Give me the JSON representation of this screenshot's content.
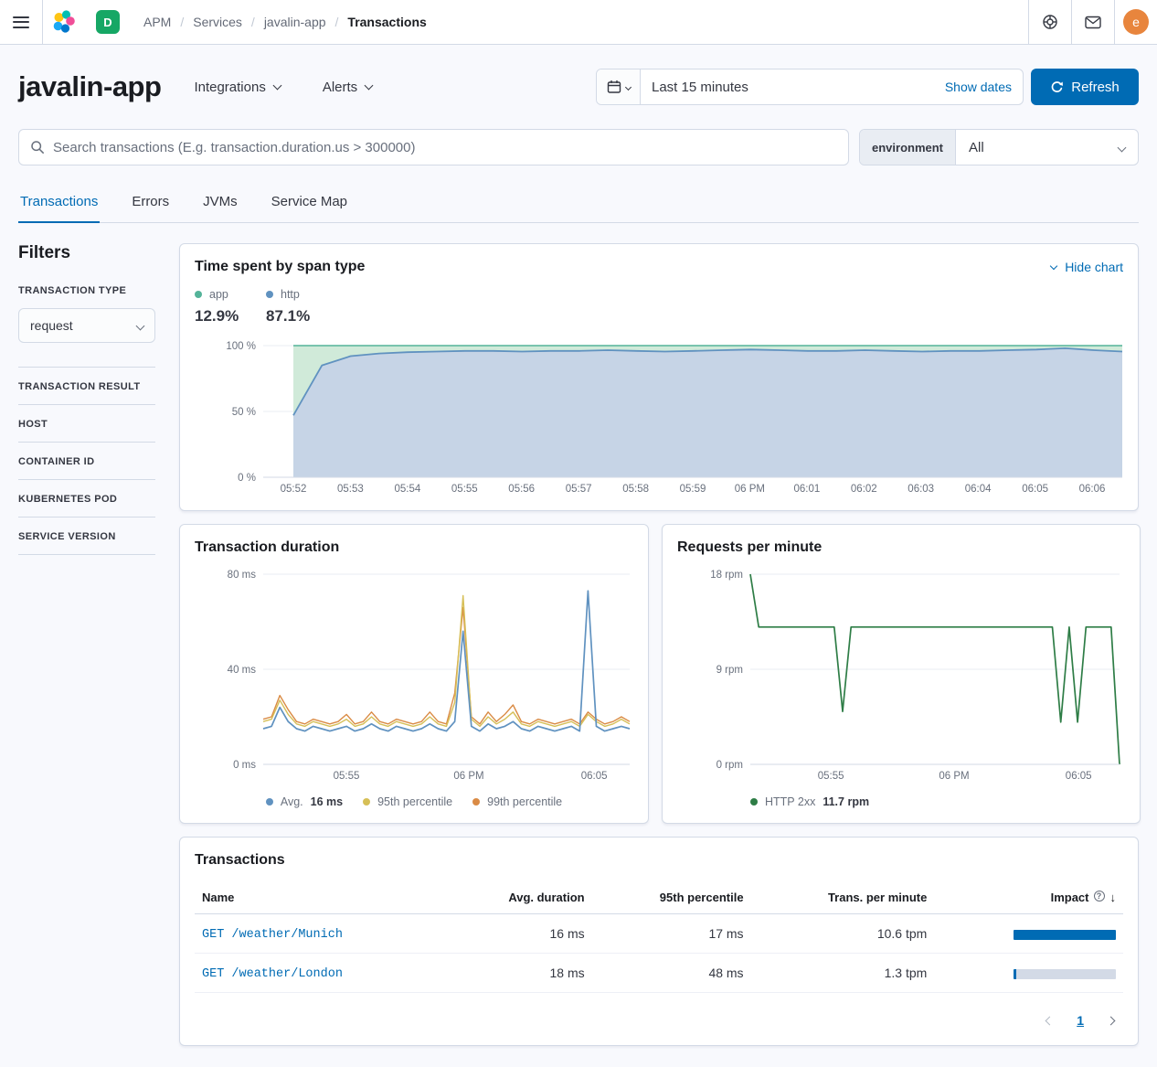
{
  "topbar": {
    "breadcrumbs": [
      "APM",
      "Services",
      "javalin-app",
      "Transactions"
    ],
    "space_badge": {
      "initial": "D",
      "color": "#16a765"
    },
    "avatar": {
      "initial": "e",
      "color": "#e8853d"
    }
  },
  "header": {
    "title": "javalin-app",
    "integrations_label": "Integrations",
    "alerts_label": "Alerts",
    "time_range": "Last 15 minutes",
    "show_dates_label": "Show dates",
    "refresh_label": "Refresh"
  },
  "search": {
    "placeholder": "Search transactions (E.g. transaction.duration.us > 300000)",
    "environment_label": "environment",
    "environment_value": "All"
  },
  "tabs": [
    {
      "label": "Transactions"
    },
    {
      "label": "Errors"
    },
    {
      "label": "JVMs"
    },
    {
      "label": "Service Map"
    }
  ],
  "filters": {
    "title": "Filters",
    "transaction_type_label": "TRANSACTION TYPE",
    "transaction_type_value": "request",
    "sections": [
      {
        "label": "TRANSACTION RESULT"
      },
      {
        "label": "HOST"
      },
      {
        "label": "CONTAINER ID"
      },
      {
        "label": "KUBERNETES POD"
      },
      {
        "label": "SERVICE VERSION"
      }
    ]
  },
  "span_panel": {
    "title": "Time spent by span type",
    "hide_chart_label": "Hide chart",
    "legend": [
      {
        "label": "app",
        "pct": "12.9%",
        "color": "#54B399"
      },
      {
        "label": "http",
        "pct": "87.1%",
        "color": "#6092C0"
      }
    ]
  },
  "duration_panel": {
    "title": "Transaction duration",
    "legend": [
      {
        "label": "Avg.",
        "value": "16 ms",
        "color": "#6092C0"
      },
      {
        "label": "95th percentile",
        "value": "",
        "color": "#D6BF57"
      },
      {
        "label": "99th percentile",
        "value": "",
        "color": "#DA8B45"
      }
    ]
  },
  "rpm_panel": {
    "title": "Requests per minute",
    "legend": [
      {
        "label": "HTTP 2xx",
        "value": "11.7 rpm",
        "color": "#2e7d46"
      }
    ]
  },
  "chart_data": [
    {
      "id": "time-spent-by-span-type",
      "type": "area",
      "stacked": true,
      "title": "Time spent by span type",
      "ylim": [
        0,
        100
      ],
      "y_ticks": [
        {
          "v": 0,
          "label": "0 %"
        },
        {
          "v": 50,
          "label": "50 %"
        },
        {
          "v": 100,
          "label": "100 %"
        }
      ],
      "x_tick_labels": [
        "05:52",
        "05:53",
        "05:54",
        "05:55",
        "05:56",
        "05:57",
        "05:58",
        "05:59",
        "06 PM",
        "06:01",
        "06:02",
        "06:03",
        "06:04",
        "06:05",
        "06:06"
      ],
      "series": [
        {
          "name": "http",
          "color": "#6092C0",
          "fill": "#c6d4e6",
          "values": [
            47,
            85,
            92,
            94,
            95,
            95.5,
            96,
            96,
            95.5,
            96,
            96,
            96.5,
            96,
            95.5,
            96,
            96.5,
            97,
            96.5,
            96,
            96,
            96.5,
            96,
            95.5,
            96,
            96,
            96.5,
            97,
            98,
            96.5,
            95.5
          ]
        },
        {
          "name": "app",
          "color": "#54B399",
          "fill": "#d0ead9",
          "values": [
            53,
            15,
            8,
            6,
            5,
            4.5,
            4,
            4,
            4.5,
            4,
            4,
            3.5,
            4,
            4.5,
            4,
            3.5,
            3,
            3.5,
            4,
            4,
            3.5,
            4,
            4.5,
            4,
            4,
            3.5,
            3,
            2,
            3.5,
            4.5
          ]
        }
      ],
      "legend_position": "top",
      "grid": true,
      "margins": {
        "l": 75,
        "r": 1,
        "t": 12,
        "b": 20
      },
      "first_tick_offset": 33,
      "last_tick_inset": 33
    },
    {
      "id": "transaction-duration",
      "type": "line",
      "title": "Transaction duration",
      "ylim": [
        0,
        80
      ],
      "y_ticks": [
        {
          "v": 0,
          "label": "0 ms"
        },
        {
          "v": 40,
          "label": "40 ms"
        },
        {
          "v": 80,
          "label": "80 ms"
        }
      ],
      "x_ticks": [
        {
          "f": 0.227,
          "label": "05:55"
        },
        {
          "f": 0.561,
          "label": "06 PM"
        },
        {
          "f": 0.903,
          "label": "06:05"
        }
      ],
      "series": [
        {
          "name": "99th percentile",
          "color": "#DA8B45",
          "width": 1.4,
          "values": [
            19,
            20,
            29,
            23,
            18,
            17,
            19,
            18,
            17,
            18,
            21,
            17,
            18,
            22,
            18,
            17,
            19,
            18,
            17,
            18,
            22,
            18,
            17,
            30,
            66,
            20,
            17,
            22,
            18,
            21,
            25,
            18,
            17,
            19,
            18,
            17,
            18,
            19,
            17,
            22,
            19,
            17,
            18,
            20,
            18
          ]
        },
        {
          "name": "95th percentile",
          "color": "#D6BF57",
          "width": 1.4,
          "values": [
            18,
            19,
            27,
            21,
            17,
            16,
            18,
            17,
            16,
            17,
            19,
            16,
            17,
            20,
            17,
            16,
            18,
            17,
            16,
            17,
            20,
            17,
            16,
            26,
            71,
            19,
            16,
            20,
            17,
            19,
            22,
            17,
            16,
            18,
            17,
            16,
            17,
            18,
            16,
            21,
            18,
            16,
            17,
            19,
            17
          ]
        },
        {
          "name": "Avg.",
          "color": "#6092C0",
          "width": 1.7,
          "values": [
            15,
            16,
            24,
            18,
            15,
            14,
            16,
            15,
            14,
            15,
            16,
            14,
            15,
            17,
            15,
            14,
            16,
            15,
            14,
            15,
            17,
            15,
            14,
            18,
            56,
            16,
            14,
            17,
            15,
            16,
            18,
            15,
            14,
            16,
            15,
            14,
            15,
            16,
            14,
            73,
            16,
            14,
            15,
            16,
            15
          ]
        }
      ],
      "legend_position": "bottom",
      "grid": true,
      "margins": {
        "l": 75,
        "r": 6,
        "t": 10,
        "b": 22
      }
    },
    {
      "id": "requests-per-minute",
      "type": "line",
      "title": "Requests per minute",
      "ylim": [
        0,
        18
      ],
      "y_ticks": [
        {
          "v": 0,
          "label": "0 rpm"
        },
        {
          "v": 9,
          "label": "9 rpm"
        },
        {
          "v": 18,
          "label": "18 rpm"
        }
      ],
      "x_ticks": [
        {
          "f": 0.218,
          "label": "05:55"
        },
        {
          "f": 0.552,
          "label": "06 PM"
        },
        {
          "f": 0.889,
          "label": "06:05"
        }
      ],
      "series": [
        {
          "name": "HTTP 2xx",
          "color": "#2e7d46",
          "width": 1.7,
          "values": [
            18,
            13,
            13,
            13,
            13,
            13,
            13,
            13,
            13,
            13,
            13,
            5,
            13,
            13,
            13,
            13,
            13,
            13,
            13,
            13,
            13,
            13,
            13,
            13,
            13,
            13,
            13,
            13,
            13,
            13,
            13,
            13,
            13,
            13,
            13,
            13,
            13,
            4,
            13,
            4,
            13,
            13,
            13,
            13,
            0
          ]
        }
      ],
      "legend_position": "bottom",
      "grid": true,
      "margins": {
        "l": 80,
        "r": 6,
        "t": 10,
        "b": 22
      }
    }
  ],
  "transactions_table": {
    "title": "Transactions",
    "columns": {
      "name": "Name",
      "avg": "Avg. duration",
      "p95": "95th percentile",
      "tpm": "Trans. per minute",
      "impact": "Impact"
    },
    "rows": [
      {
        "name": "GET /weather/Munich",
        "avg": "16 ms",
        "p95": "17 ms",
        "tpm": "10.6 tpm",
        "impact_pct": 100
      },
      {
        "name": "GET /weather/London",
        "avg": "18 ms",
        "p95": "48 ms",
        "tpm": "1.3 tpm",
        "impact_pct": 3
      }
    ],
    "pagination": {
      "current_page": "1"
    }
  }
}
